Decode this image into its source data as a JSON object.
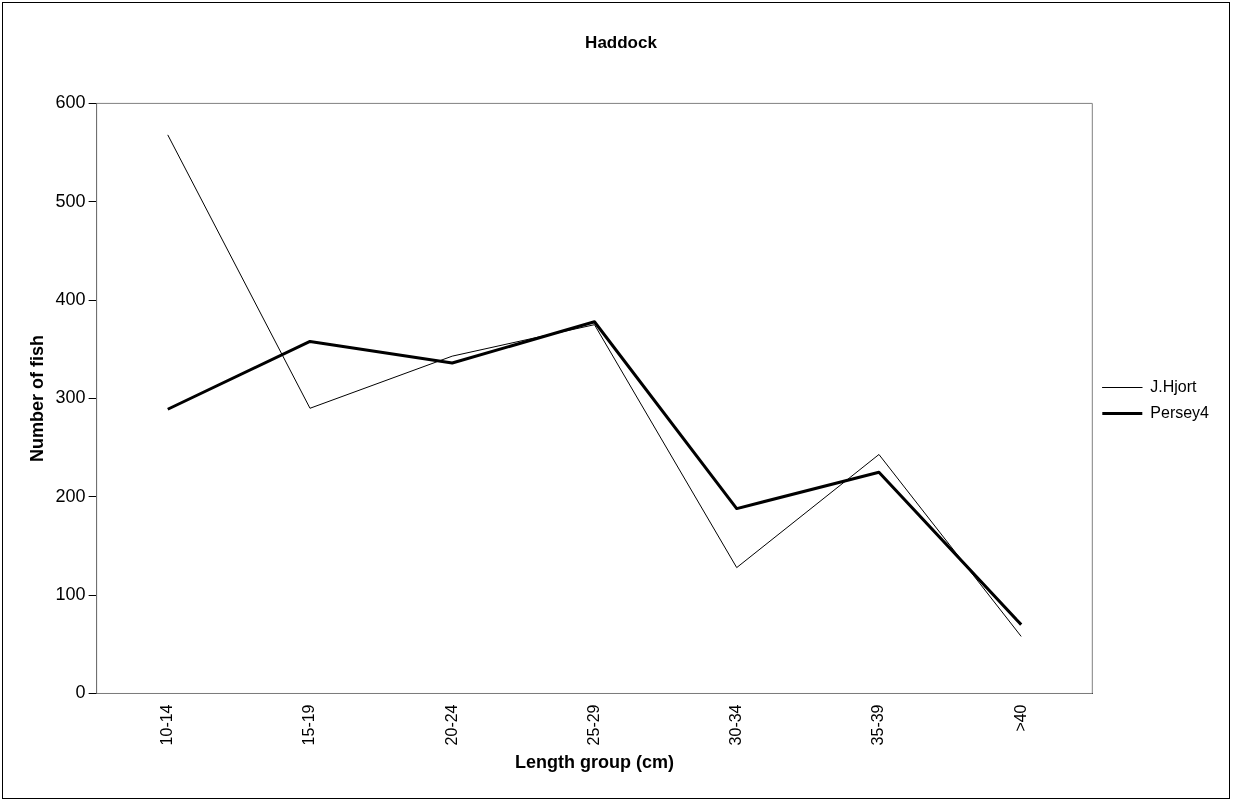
{
  "chart_data": {
    "type": "line",
    "title": "Haddock",
    "xlabel": "Length group (cm)",
    "ylabel": "Number of fish",
    "categories": [
      "10-14",
      "15-19",
      "20-24",
      "25-29",
      "30-34",
      "35-39",
      ">40"
    ],
    "series": [
      {
        "name": "J.Hjort",
        "color": "#000000",
        "values": [
          568,
          290,
          343,
          375,
          128,
          243,
          58
        ]
      },
      {
        "name": "Persey4",
        "color": "#000000",
        "values": [
          289,
          358,
          336,
          378,
          188,
          225,
          70
        ]
      }
    ],
    "ylim": [
      0,
      600
    ],
    "yticks": [
      0,
      100,
      200,
      300,
      400,
      500,
      600
    ],
    "grid": false,
    "legend": "right",
    "marker": "none",
    "line_style": "solid"
  }
}
